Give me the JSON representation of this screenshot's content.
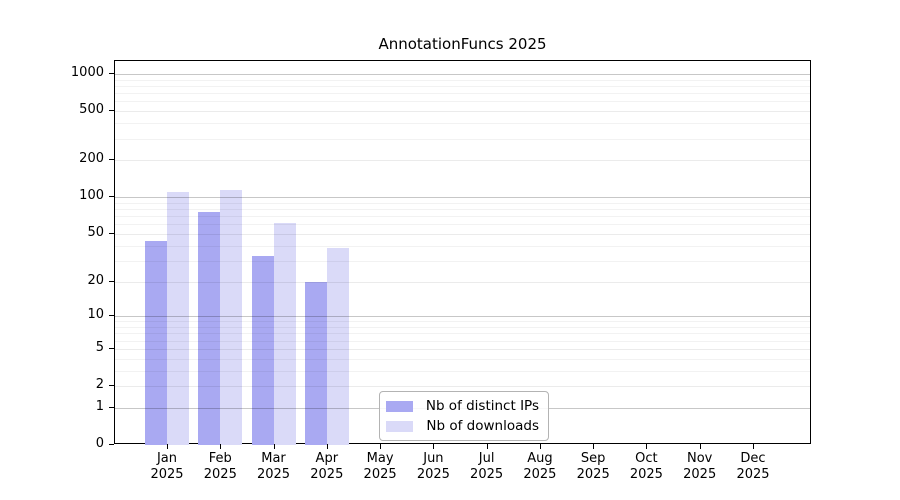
{
  "chart_data": {
    "type": "bar",
    "title": "AnnotationFuncs 2025",
    "categories": [
      "Jan",
      "Feb",
      "Mar",
      "Apr",
      "May",
      "Jun",
      "Jul",
      "Aug",
      "Sep",
      "Oct",
      "Nov",
      "Dec"
    ],
    "year_label": "2025",
    "series": [
      {
        "name": "Nb of distinct IPs",
        "color": "#a9a9f2",
        "values": [
          44,
          75,
          33,
          20,
          0,
          0,
          0,
          0,
          0,
          0,
          0,
          0
        ]
      },
      {
        "name": "Nb of downloads",
        "color": "#dadaf8",
        "values": [
          110,
          114,
          61,
          38,
          0,
          0,
          0,
          0,
          0,
          0,
          0,
          0
        ]
      }
    ],
    "xlabel": "",
    "ylabel": "",
    "y_scale": "log10(1+x)",
    "y_ticks": [
      0,
      1,
      2,
      5,
      10,
      20,
      50,
      100,
      200,
      500,
      1000
    ],
    "y_ticks_decade": [
      1,
      10,
      100,
      1000
    ],
    "y_ticks_minor": [
      3,
      4,
      6,
      7,
      8,
      9,
      30,
      40,
      60,
      70,
      80,
      90,
      300,
      400,
      600,
      700,
      800,
      900
    ],
    "ylim": [
      0,
      1280
    ],
    "grid": "horizontal",
    "legend_position": "inside-bottom-center"
  },
  "colors": {
    "background": "#ffffff",
    "spine": "#000000",
    "text": "#000000",
    "grid_decade": "rgba(0,0,0,0.22)",
    "grid_tick": "rgba(0,0,0,0.08)",
    "grid_minor": "rgba(0,0,0,0.05)",
    "legend_border": "#b3b3b3"
  }
}
